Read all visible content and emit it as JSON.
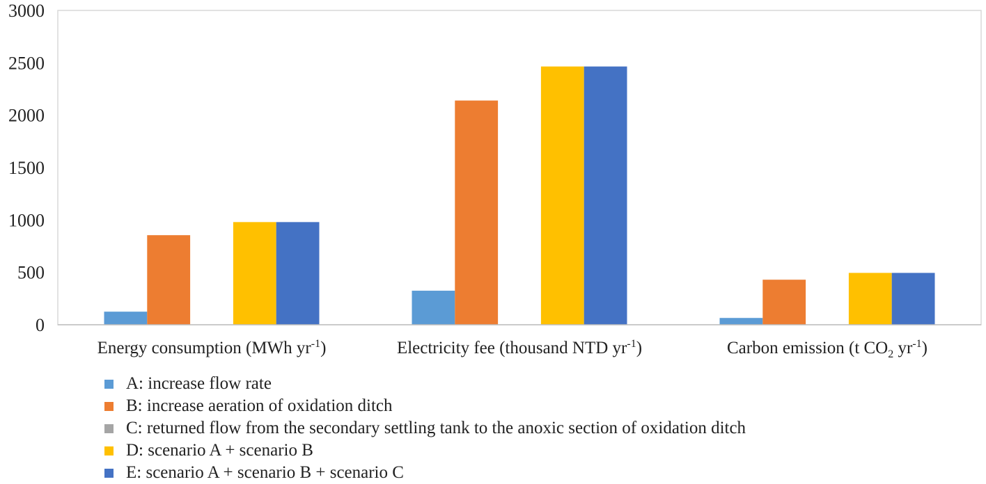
{
  "chart_data": {
    "type": "bar",
    "title": "",
    "xlabel": "",
    "ylabel": "",
    "ylim": [
      0,
      3000
    ],
    "yticks": [
      0,
      500,
      1000,
      1500,
      2000,
      2500,
      3000
    ],
    "categories": [
      {
        "text": "Energy consumption (MWh yr",
        "sup": "-1",
        "tail": ")"
      },
      {
        "text": "Electricity fee (thousand NTD yr",
        "sup": "-1",
        "tail": ")"
      },
      {
        "text": "Carbon emission (t CO",
        "sub": "2",
        "mid": " yr",
        "sup": "-1",
        "tail": ")"
      }
    ],
    "series": [
      {
        "name": "A: increase flow rate",
        "color": "#5B9BD5",
        "values": [
          125,
          325,
          65
        ]
      },
      {
        "name": "B: increase aeration of oxidation ditch",
        "color": "#ED7D31",
        "values": [
          855,
          2140,
          430
        ]
      },
      {
        "name": "C: returned flow from the secondary settling tank to the anoxic section of oxidation ditch",
        "color": "#A5A5A5",
        "values": [
          0,
          0,
          0
        ]
      },
      {
        "name": "D: scenario A + scenario B",
        "color": "#FFC000",
        "values": [
          980,
          2465,
          495
        ]
      },
      {
        "name": "E: scenario A + scenario B + scenario C",
        "color": "#4472C4",
        "values": [
          980,
          2465,
          495
        ]
      }
    ],
    "legend_position": "bottom-left"
  }
}
